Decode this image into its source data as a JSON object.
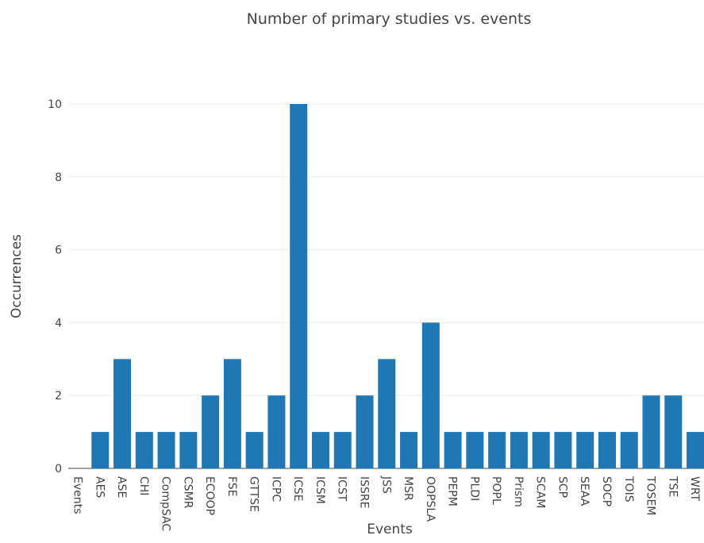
{
  "chart_data": {
    "type": "bar",
    "title": "Number of primary studies vs. events",
    "xlabel": "Events",
    "ylabel": "Occurrences",
    "ylim": [
      0,
      10
    ],
    "yticks": [
      0,
      2,
      4,
      6,
      8,
      10
    ],
    "grid": true,
    "categories": [
      "Events",
      "AES",
      "ASE",
      "CHI",
      "CompSAC",
      "CSMR",
      "ECOOP",
      "FSE",
      "GTTSE",
      "ICPC",
      "ICSE",
      "ICSM",
      "ICST",
      "ISSRE",
      "JSS",
      "MSR",
      "OOPSLA",
      "PEPM",
      "PLDI",
      "POPL",
      "Prism",
      "SCAM",
      "SCP",
      "SEAA",
      "SOCP",
      "TOIS",
      "TOSEM",
      "TSE",
      "WRT"
    ],
    "values": [
      0,
      1,
      3,
      1,
      1,
      1,
      2,
      3,
      1,
      2,
      10,
      1,
      1,
      2,
      3,
      1,
      4,
      1,
      1,
      1,
      1,
      1,
      1,
      1,
      1,
      1,
      2,
      2,
      1
    ],
    "bar_color": "#1f77b4"
  }
}
